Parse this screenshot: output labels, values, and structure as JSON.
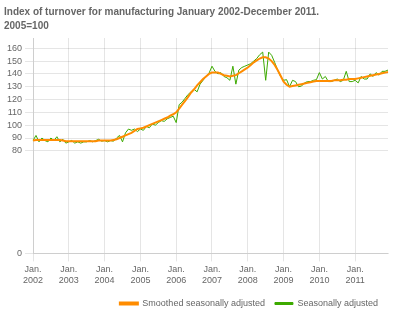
{
  "chart_data": {
    "type": "line",
    "title": "Index of turnover for manufacturing January 2002-December 2011.",
    "subtitle": "2005=100",
    "categories": [
      "Jan.\n2002",
      null,
      null,
      null,
      null,
      null,
      null,
      null,
      null,
      null,
      null,
      null,
      "Jan.\n2003",
      null,
      null,
      null,
      null,
      null,
      null,
      null,
      null,
      null,
      null,
      null,
      "Jan.\n2004",
      null,
      null,
      null,
      null,
      null,
      null,
      null,
      null,
      null,
      null,
      null,
      "Jan.\n2005",
      null,
      null,
      null,
      null,
      null,
      null,
      null,
      null,
      null,
      null,
      null,
      "Jan.\n2006",
      null,
      null,
      null,
      null,
      null,
      null,
      null,
      null,
      null,
      null,
      null,
      "Jan.\n2007",
      null,
      null,
      null,
      null,
      null,
      null,
      null,
      null,
      null,
      null,
      null,
      "Jan.\n2008",
      null,
      null,
      null,
      null,
      null,
      null,
      null,
      null,
      null,
      null,
      null,
      "Jan.\n2009",
      null,
      null,
      null,
      null,
      null,
      null,
      null,
      null,
      null,
      null,
      null,
      "Jan.\n2010",
      null,
      null,
      null,
      null,
      null,
      null,
      null,
      null,
      null,
      null,
      null,
      "Jan.\n2011",
      null,
      null,
      null,
      null,
      null,
      null,
      null,
      null,
      null,
      null,
      null
    ],
    "series": [
      {
        "name": "Smoothed seasonally adjusted",
        "color": "#FF8C00",
        "values": [
          88.0,
          88.5,
          88.5,
          88.5,
          88.5,
          88.5,
          88.5,
          88.5,
          88.5,
          88.5,
          88.0,
          87.5,
          87.5,
          87.5,
          87.5,
          87.5,
          87.5,
          87.5,
          87.5,
          87.5,
          87.5,
          87.5,
          88.0,
          88.0,
          88.0,
          88.0,
          88.0,
          88.5,
          89.0,
          90.0,
          91.0,
          92.0,
          93.0,
          94.0,
          95.5,
          97.0,
          97.5,
          98.0,
          99.0,
          100.0,
          101.0,
          102.0,
          103.0,
          104.0,
          105.0,
          106.0,
          107.5,
          108.5,
          110.0,
          113.0,
          116.0,
          119.0,
          122.0,
          125.5,
          128.0,
          131.0,
          133.5,
          136.0,
          138.0,
          140.0,
          141.0,
          141.0,
          141.0,
          140.0,
          139.0,
          138.5,
          138.0,
          138.5,
          139.0,
          140.5,
          142.0,
          143.5,
          145.0,
          147.0,
          149.0,
          150.5,
          152.0,
          153.0,
          153.0,
          152.0,
          150.0,
          147.0,
          143.0,
          138.5,
          134.0,
          131.5,
          130.0,
          130.5,
          131.0,
          131.5,
          132.0,
          132.5,
          133.0,
          133.5,
          134.0,
          134.5,
          134.5,
          134.5,
          134.5,
          134.5,
          134.5,
          135.0,
          135.0,
          135.0,
          135.5,
          135.5,
          136.0,
          136.0,
          136.0,
          136.5,
          137.0,
          137.5,
          138.0,
          138.5,
          139.0,
          139.5,
          140.0,
          140.5,
          141.0,
          141.5
        ]
      },
      {
        "name": "Seasonally adjusted",
        "color": "#3DAA00",
        "values": [
          88.0,
          92.0,
          87.0,
          90.0,
          88.0,
          87.0,
          90.0,
          88.0,
          91.0,
          87.0,
          89.0,
          86.0,
          87.0,
          88.0,
          86.0,
          87.0,
          86.0,
          87.0,
          87.0,
          88.0,
          87.0,
          88.0,
          89.0,
          87.5,
          88.0,
          87.0,
          88.0,
          87.5,
          90.0,
          92.0,
          87.0,
          94.0,
          97.0,
          96.0,
          97.0,
          95.0,
          97.0,
          96.0,
          99.0,
          98.0,
          101.0,
          100.0,
          102.0,
          103.5,
          103.0,
          105.0,
          106.0,
          107.0,
          102.0,
          116.0,
          118.0,
          121.0,
          124.0,
          126.0,
          128.0,
          126.0,
          132.0,
          135.0,
          138.0,
          140.5,
          146.0,
          142.0,
          140.0,
          141.0,
          138.0,
          137.0,
          135.0,
          146.0,
          132.0,
          143.0,
          145.0,
          146.0,
          147.0,
          148.0,
          150.0,
          152.0,
          155.0,
          157.0,
          135.0,
          157.0,
          154.5,
          149.0,
          143.0,
          138.0,
          135.0,
          135.5,
          130.0,
          135.0,
          134.0,
          130.0,
          130.5,
          133.0,
          134.0,
          134.0,
          135.0,
          135.5,
          141.0,
          136.0,
          138.0,
          134.0,
          134.0,
          135.0,
          136.0,
          134.0,
          135.0,
          142.0,
          134.0,
          134.0,
          135.0,
          133.0,
          138.0,
          136.0,
          136.0,
          140.0,
          138.0,
          141.0,
          139.0,
          142.0,
          142.0,
          143.0
        ]
      }
    ],
    "ylim": [
      0,
      168
    ],
    "yticks": [
      0,
      80,
      90,
      100,
      110,
      120,
      130,
      140,
      150,
      160
    ],
    "grid": true,
    "legend": "lower right"
  }
}
